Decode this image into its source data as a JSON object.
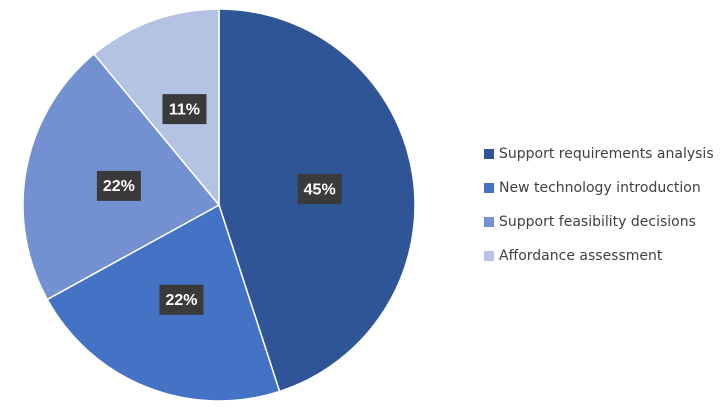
{
  "chart_data": {
    "type": "pie",
    "categories": [
      "Support requirements analysis",
      "New technology introduction",
      "Support feasibility decisions",
      "Affordance assessment"
    ],
    "values": [
      45,
      22,
      22,
      11
    ],
    "labels": [
      "45%",
      "22%",
      "22%",
      "11%"
    ],
    "colors": [
      "#2f5597",
      "#4472c4",
      "#7390d0",
      "#b4c3e4"
    ],
    "start_angle": "12 o'clock",
    "direction": "clockwise",
    "legend": "right"
  }
}
